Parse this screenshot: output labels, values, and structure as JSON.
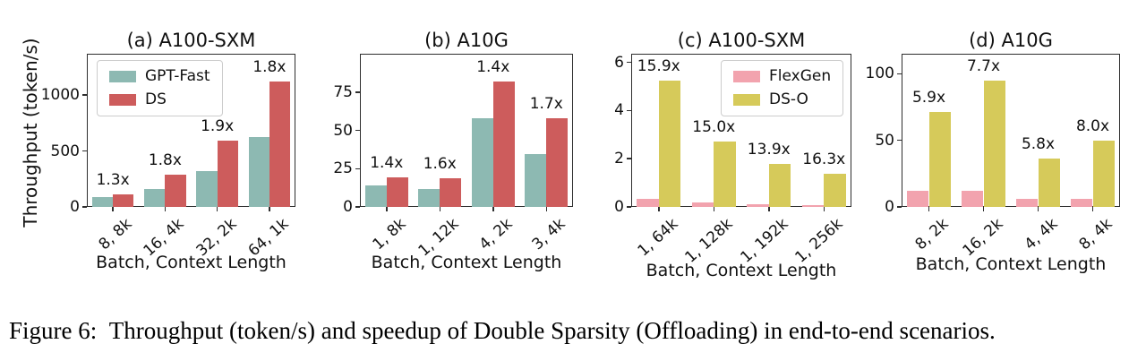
{
  "figure": {
    "ylabel": "Throughput (token/s)",
    "caption": "Figure 6: Throughput (token/s) and speedup of Double Sparsity (Offloading) in end-to-end scenarios."
  },
  "colors": {
    "gpt_fast": "#8db9b2",
    "ds": "#cd5c5c",
    "flexgen": "#f2a3ae",
    "ds_o": "#d6ca5a",
    "spine": "#2e2e2e"
  },
  "chart_data": [
    {
      "type": "bar",
      "title": "(a) A100-SXM",
      "xlabel": "Batch, Context Length",
      "ylabel": "Throughput (token/s)",
      "categories": [
        "8, 8k",
        "16, 4k",
        "32, 2k",
        "64, 1k"
      ],
      "series": [
        {
          "name": "GPT-Fast",
          "color_key": "gpt_fast",
          "values": [
            85,
            160,
            320,
            625
          ]
        },
        {
          "name": "DS",
          "color_key": "ds",
          "values": [
            110,
            285,
            595,
            1125
          ]
        }
      ],
      "annotations": [
        "1.3x",
        "1.8x",
        "1.9x",
        "1.8x"
      ],
      "yticks": [
        0,
        500,
        1000
      ],
      "ylim": [
        0,
        1370
      ],
      "grid": false,
      "legend": {
        "visible": true,
        "position": "upper-left"
      }
    },
    {
      "type": "bar",
      "title": "(b) A10G",
      "xlabel": "Batch, Context Length",
      "ylabel": "Throughput (token/s)",
      "categories": [
        "1, 8k",
        "1, 12k",
        "4, 2k",
        "3, 4k"
      ],
      "series": [
        {
          "name": "GPT-Fast",
          "color_key": "gpt_fast",
          "values": [
            14,
            11.5,
            58,
            34.5
          ]
        },
        {
          "name": "DS",
          "color_key": "ds",
          "values": [
            19.5,
            18.5,
            82,
            58
          ]
        }
      ],
      "annotations": [
        "1.4x",
        "1.6x",
        "1.4x",
        "1.7x"
      ],
      "yticks": [
        0,
        25,
        50,
        75
      ],
      "ylim": [
        0,
        100
      ],
      "grid": false,
      "legend": {
        "visible": false
      }
    },
    {
      "type": "bar",
      "title": "(c) A100-SXM",
      "xlabel": "Batch, Context Length",
      "ylabel": "Throughput (token/s)",
      "categories": [
        "1, 64k",
        "1, 128k",
        "1, 192k",
        "1, 256k"
      ],
      "series": [
        {
          "name": "FlexGen",
          "color_key": "flexgen",
          "values": [
            0.33,
            0.18,
            0.13,
            0.085
          ]
        },
        {
          "name": "DS-O",
          "color_key": "ds_o",
          "values": [
            5.25,
            2.7,
            1.8,
            1.38
          ]
        }
      ],
      "annotations": [
        "15.9x",
        "15.0x",
        "13.9x",
        "16.3x"
      ],
      "yticks": [
        0,
        2,
        4,
        6
      ],
      "ylim": [
        0,
        6.36
      ],
      "grid": false,
      "legend": {
        "visible": true,
        "position": "upper-right"
      }
    },
    {
      "type": "bar",
      "title": "(d) A10G",
      "xlabel": "Batch, Context Length",
      "ylabel": "Throughput (token/s)",
      "categories": [
        "8, 2k",
        "16, 2k",
        "4, 4k",
        "8, 4k"
      ],
      "series": [
        {
          "name": "FlexGen",
          "color_key": "flexgen",
          "values": [
            12,
            12.4,
            6.2,
            6.2
          ]
        },
        {
          "name": "DS-O",
          "color_key": "ds_o",
          "values": [
            71,
            95,
            36,
            50
          ]
        }
      ],
      "annotations": [
        "5.9x",
        "7.7x",
        "5.8x",
        "8.0x"
      ],
      "yticks": [
        0,
        50,
        100
      ],
      "ylim": [
        0,
        115
      ],
      "grid": false,
      "legend": {
        "visible": false
      }
    }
  ]
}
